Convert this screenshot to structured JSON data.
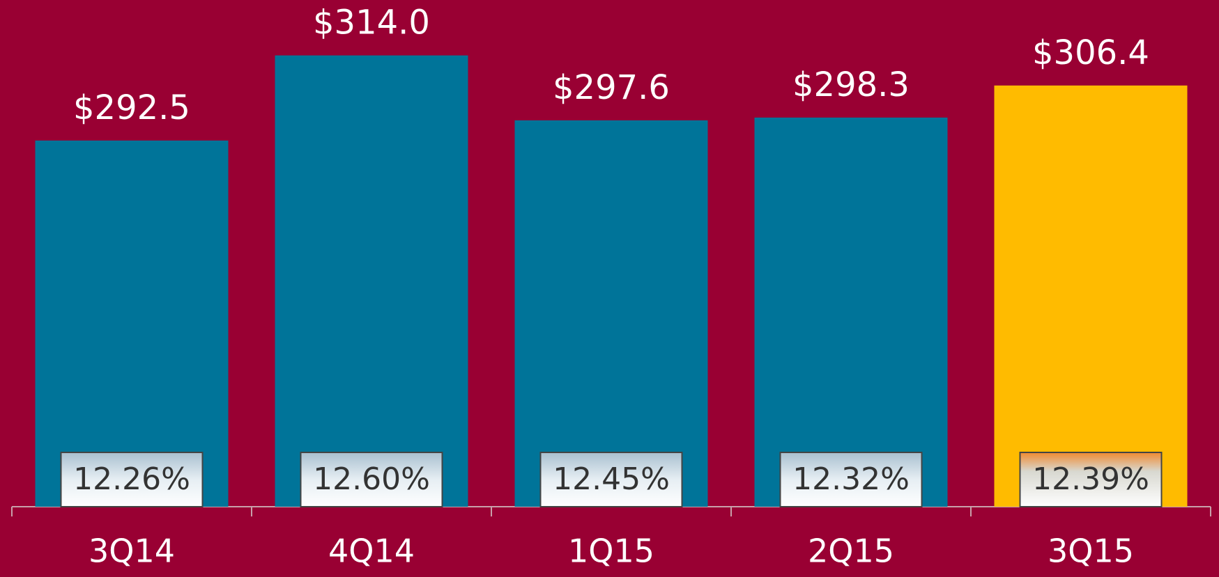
{
  "chart_data": {
    "type": "bar",
    "categories": [
      "3Q14",
      "4Q14",
      "1Q15",
      "2Q15",
      "3Q15"
    ],
    "values": [
      292.5,
      314.0,
      297.6,
      298.3,
      306.4
    ],
    "value_labels": [
      "$292.5",
      "$314.0",
      "$297.6",
      "$298.3",
      "$306.4"
    ],
    "colors": [
      "#007499",
      "#007499",
      "#007499",
      "#007499",
      "#ffbb00"
    ],
    "ratios": {
      "values": [
        12.26,
        12.6,
        12.45,
        12.32,
        12.39
      ],
      "value_labels": [
        "12.26%",
        "12.60%",
        "12.45%",
        "12.32%",
        "12.39%"
      ]
    },
    "ylim": [
      200,
      328
    ]
  }
}
